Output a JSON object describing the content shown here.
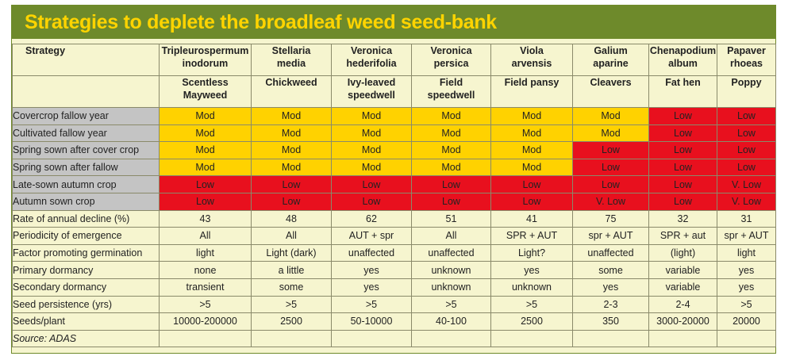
{
  "title": "Strategies to deplete the broadleaf weed seed-bank",
  "colors": {
    "title_bar": "#6e8a2b",
    "title_text": "#ffd400",
    "mod": "#ffd200",
    "low": "#e8101e",
    "strategy_label_bg": "#c4c4c4",
    "panel_bg": "#f6f5cf"
  },
  "header": {
    "strategy": "Strategy",
    "species": [
      {
        "latin1": "Tripleurospermum",
        "latin2": "inodorum",
        "common1": "Scentless",
        "common2": "Mayweed"
      },
      {
        "latin1": "Stellaria",
        "latin2": "media",
        "common1": "Chickweed",
        "common2": ""
      },
      {
        "latin1": "Veronica",
        "latin2": "hederifolia",
        "common1": "Ivy-leaved",
        "common2": "speedwell"
      },
      {
        "latin1": "Veronica",
        "latin2": "persica",
        "common1": "Field",
        "common2": "speedwell"
      },
      {
        "latin1": "Viola",
        "latin2": "arvensis",
        "common1": "Field pansy",
        "common2": ""
      },
      {
        "latin1": "Galium",
        "latin2": "aparine",
        "common1": "Cleavers",
        "common2": ""
      },
      {
        "latin1": "Chenapodium",
        "latin2": "album",
        "common1": "Fat hen",
        "common2": ""
      },
      {
        "latin1": "Papaver",
        "latin2": "rhoeas",
        "common1": "Poppy",
        "common2": ""
      }
    ]
  },
  "strategy_rows": [
    {
      "label": "Covercrop fallow year",
      "values": [
        "Mod",
        "Mod",
        "Mod",
        "Mod",
        "Mod",
        "Mod",
        "Low",
        "Low"
      ]
    },
    {
      "label": "Cultivated fallow year",
      "values": [
        "Mod",
        "Mod",
        "Mod",
        "Mod",
        "Mod",
        "Mod",
        "Low",
        "Low"
      ]
    },
    {
      "label": "Spring sown after cover crop",
      "values": [
        "Mod",
        "Mod",
        "Mod",
        "Mod",
        "Mod",
        "Low",
        "Low",
        "Low"
      ]
    },
    {
      "label": "Spring sown after fallow",
      "values": [
        "Mod",
        "Mod",
        "Mod",
        "Mod",
        "Mod",
        "Low",
        "Low",
        "Low"
      ]
    },
    {
      "label": "Late-sown autumn crop",
      "values": [
        "Low",
        "Low",
        "Low",
        "Low",
        "Low",
        "Low",
        "Low",
        "V. Low"
      ]
    },
    {
      "label": "Autumn sown crop",
      "values": [
        "Low",
        "Low",
        "Low",
        "Low",
        "Low",
        "V. Low",
        "Low",
        "V. Low"
      ]
    }
  ],
  "info_rows": [
    {
      "label": "Rate of annual decline (%)",
      "values": [
        "43",
        "48",
        "62",
        "51",
        "41",
        "75",
        "32",
        "31"
      ]
    },
    {
      "label": "Periodicity of emergence",
      "values": [
        "All",
        "All",
        "AUT + spr",
        "All",
        "SPR + AUT",
        "spr + AUT",
        "SPR + aut",
        "spr + AUT"
      ]
    },
    {
      "label": "Factor promoting germination",
      "values": [
        "light",
        "Light (dark)",
        "unaffected",
        "unaffected",
        "Light?",
        "unaffected",
        "(light)",
        "light"
      ]
    },
    {
      "label": "Primary dormancy",
      "values": [
        "none",
        "a little",
        "yes",
        "unknown",
        "yes",
        "some",
        "variable",
        "yes"
      ]
    },
    {
      "label": "Secondary dormancy",
      "values": [
        "transient",
        "some",
        "yes",
        "unknown",
        "unknown",
        "yes",
        "variable",
        "yes"
      ]
    },
    {
      "label": "Seed persistence (yrs)",
      "values": [
        ">5",
        ">5",
        ">5",
        ">5",
        ">5",
        "2-3",
        "2-4",
        ">5"
      ]
    },
    {
      "label": "Seeds/plant",
      "values": [
        "10000-200000",
        "2500",
        "50-10000",
        "40-100",
        "2500",
        "350",
        "3000-20000",
        "20000"
      ]
    }
  ],
  "source": "Source: ADAS"
}
